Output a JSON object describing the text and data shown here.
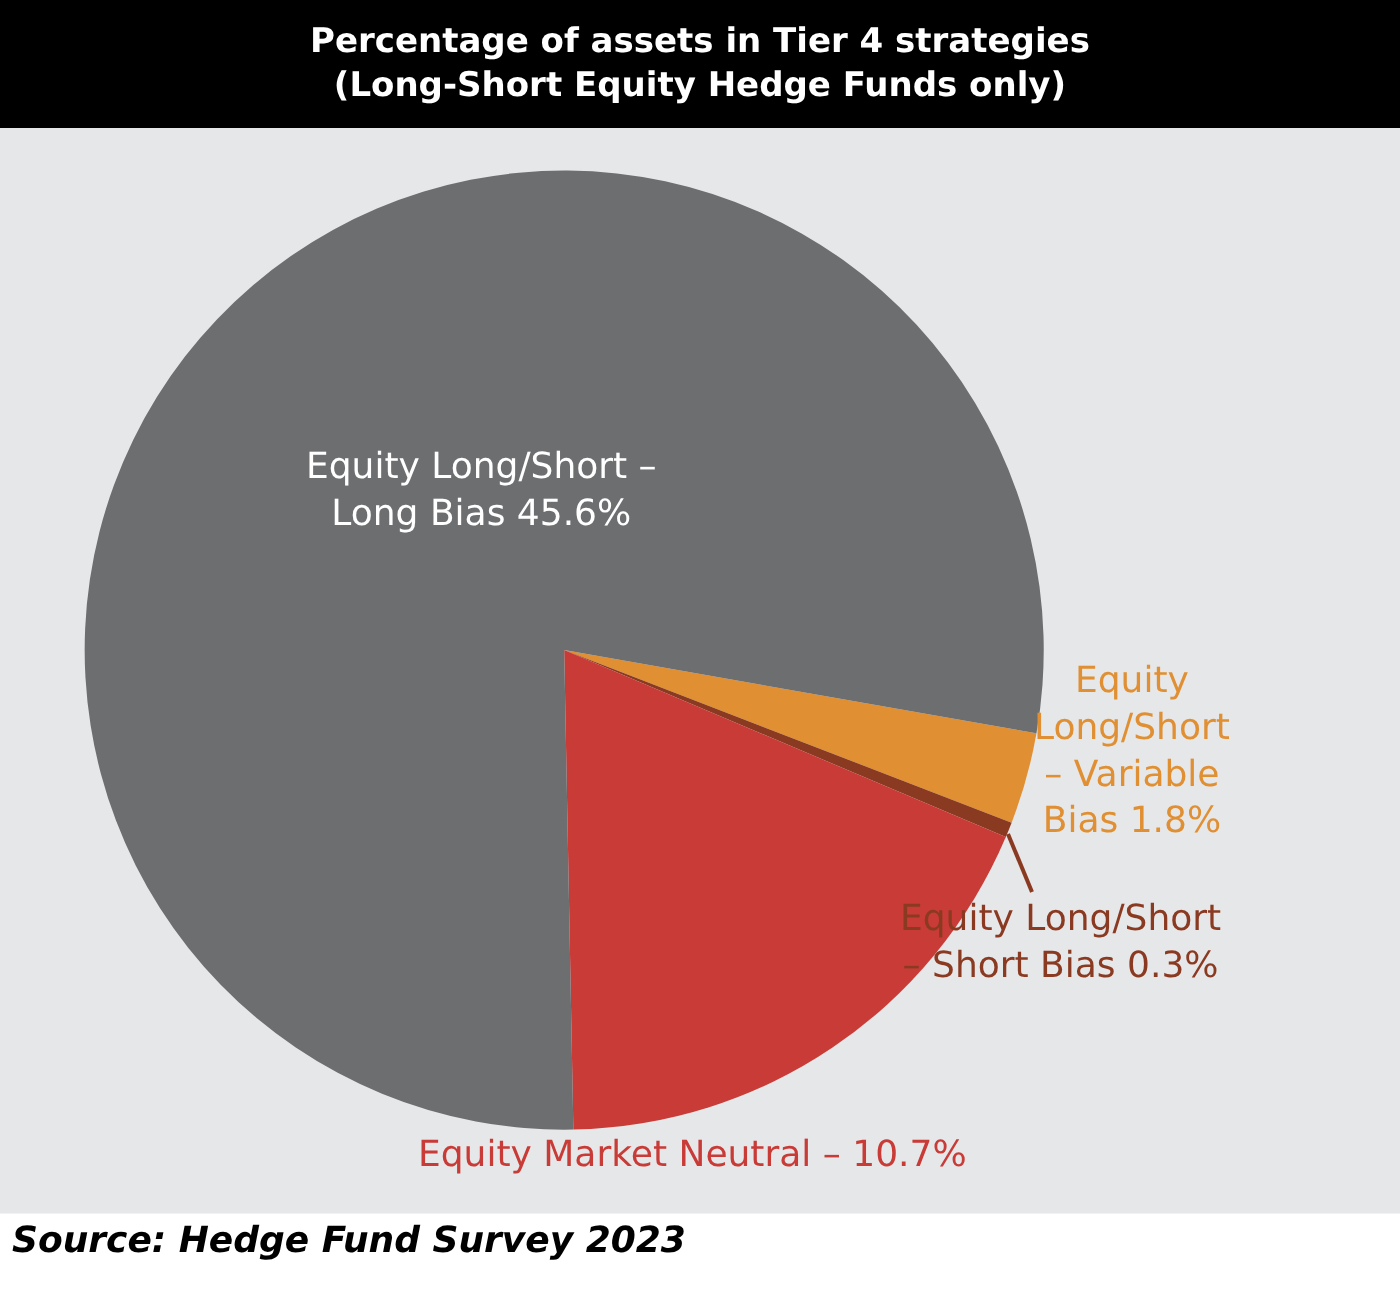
{
  "chart_data": {
    "type": "pie",
    "title": "Percentage of assets in Tier 4 strategies\n(Long-Short Equity Hedge Funds only)",
    "categories": [
      "Equity Long/Short – Variable Bias",
      "Equity Long/Short – Short Bias",
      "Equity Market Neutral –",
      "Equity Long/Short – Long Bias"
    ],
    "values": [
      1.8,
      0.3,
      10.7,
      45.6
    ],
    "value_labels": [
      "1.8%",
      "0.3%",
      "10.7%",
      "45.6%"
    ],
    "colors": [
      "#e08f33",
      "#8b3a22",
      "#c83b37",
      "#6d6e70"
    ],
    "annotations": [
      "Source: Hedge Fund Survey 2023"
    ],
    "legend": false
  }
}
